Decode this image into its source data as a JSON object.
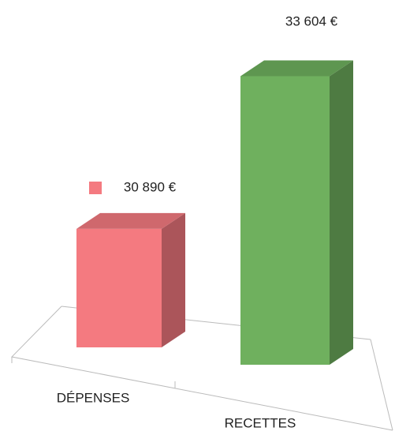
{
  "chart_data": {
    "type": "bar3d",
    "categories": [
      "DÉPENSES",
      "RECETTES"
    ],
    "values": [
      30890,
      33604
    ],
    "value_labels": [
      "30 890 €",
      "33 604 €"
    ],
    "colors": [
      "#f47a80",
      "#6fb05e"
    ],
    "ylim": [
      29000,
      34000
    ]
  }
}
